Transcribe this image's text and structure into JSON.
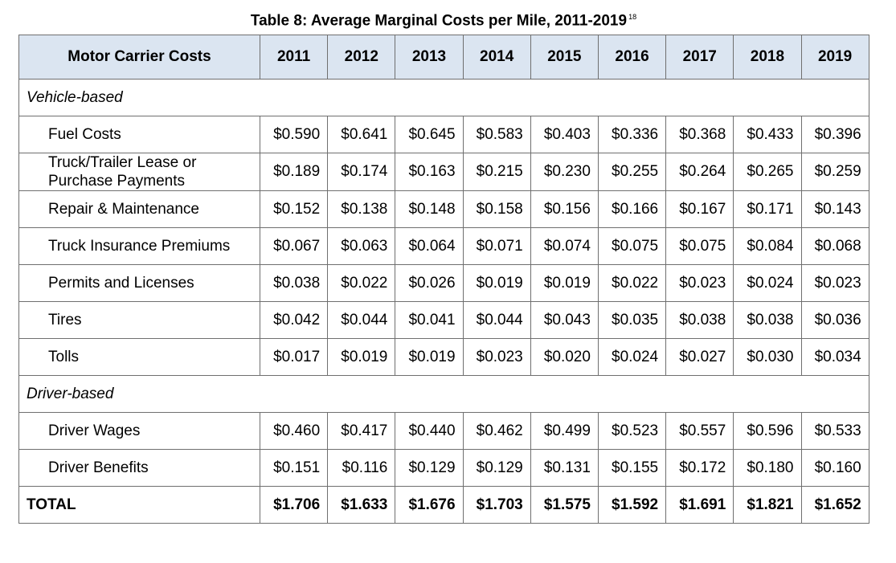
{
  "caption": {
    "title": "Table 8: Average Marginal Costs per Mile, 2011-2019",
    "footnote": "18"
  },
  "header": {
    "label": "Motor Carrier Costs",
    "years": [
      "2011",
      "2012",
      "2013",
      "2014",
      "2015",
      "2016",
      "2017",
      "2018",
      "2019"
    ]
  },
  "sections": [
    {
      "title": "Vehicle-based",
      "rows": [
        {
          "label": "Fuel Costs",
          "values": [
            "$0.590",
            "$0.641",
            "$0.645",
            "$0.583",
            "$0.403",
            "$0.336",
            "$0.368",
            "$0.433",
            "$0.396"
          ]
        },
        {
          "label": "Truck/Trailer Lease or Purchase Payments",
          "values": [
            "$0.189",
            "$0.174",
            "$0.163",
            "$0.215",
            "$0.230",
            "$0.255",
            "$0.264",
            "$0.265",
            "$0.259"
          ]
        },
        {
          "label": "Repair & Maintenance",
          "values": [
            "$0.152",
            "$0.138",
            "$0.148",
            "$0.158",
            "$0.156",
            "$0.166",
            "$0.167",
            "$0.171",
            "$0.143"
          ]
        },
        {
          "label": "Truck Insurance Premiums",
          "values": [
            "$0.067",
            "$0.063",
            "$0.064",
            "$0.071",
            "$0.074",
            "$0.075",
            "$0.075",
            "$0.084",
            "$0.068"
          ]
        },
        {
          "label": "Permits and Licenses",
          "values": [
            "$0.038",
            "$0.022",
            "$0.026",
            "$0.019",
            "$0.019",
            "$0.022",
            "$0.023",
            "$0.024",
            "$0.023"
          ]
        },
        {
          "label": "Tires",
          "values": [
            "$0.042",
            "$0.044",
            "$0.041",
            "$0.044",
            "$0.043",
            "$0.035",
            "$0.038",
            "$0.038",
            "$0.036"
          ]
        },
        {
          "label": "Tolls",
          "values": [
            "$0.017",
            "$0.019",
            "$0.019",
            "$0.023",
            "$0.020",
            "$0.024",
            "$0.027",
            "$0.030",
            "$0.034"
          ]
        }
      ]
    },
    {
      "title": "Driver-based",
      "rows": [
        {
          "label": "Driver Wages",
          "values": [
            "$0.460",
            "$0.417",
            "$0.440",
            "$0.462",
            "$0.499",
            "$0.523",
            "$0.557",
            "$0.596",
            "$0.533"
          ]
        },
        {
          "label": "Driver Benefits",
          "values": [
            "$0.151",
            "$0.116",
            "$0.129",
            "$0.129",
            "$0.131",
            "$0.155",
            "$0.172",
            "$0.180",
            "$0.160"
          ]
        }
      ]
    }
  ],
  "total": {
    "label": "TOTAL",
    "values": [
      "$1.706",
      "$1.633",
      "$1.676",
      "$1.703",
      "$1.575",
      "$1.592",
      "$1.691",
      "$1.821",
      "$1.652"
    ]
  },
  "colors": {
    "header_bg": "#dbe5f1",
    "border": "#6f6f6f"
  }
}
